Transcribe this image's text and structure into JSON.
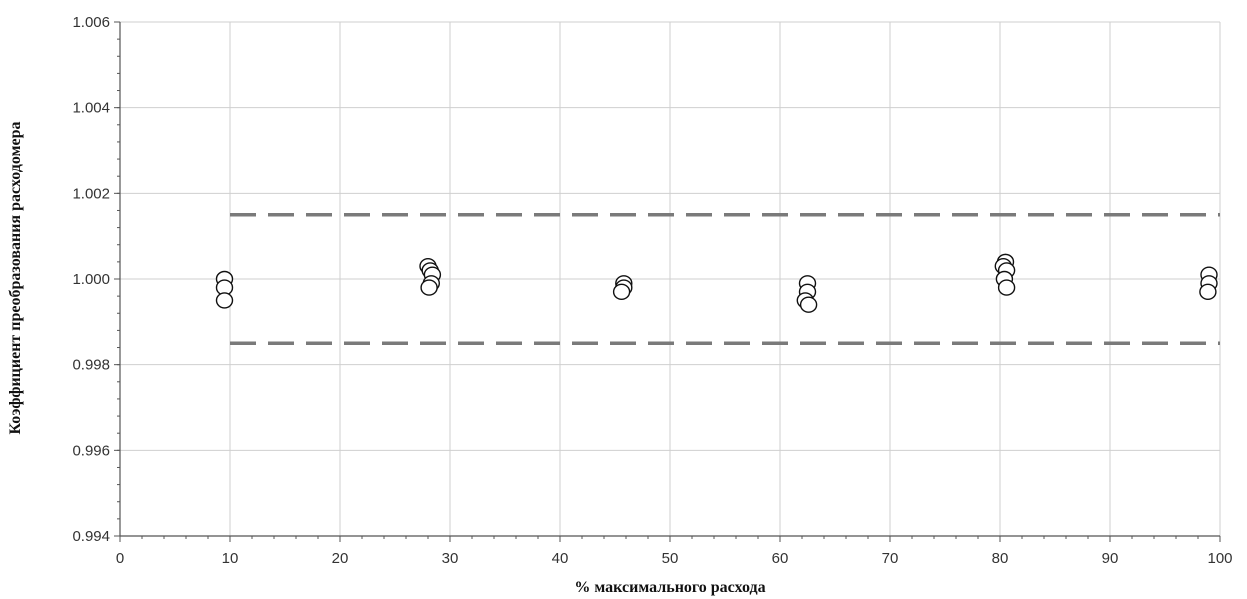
{
  "chart_data": {
    "type": "scatter",
    "title": "",
    "xlabel": "% максимального расхода",
    "ylabel": "Коэффициент  преобразования расходомера",
    "xlim": [
      0,
      100
    ],
    "ylim": [
      0.994,
      1.006
    ],
    "x_ticks": [
      "0",
      "10",
      "20",
      "30",
      "40",
      "50",
      "60",
      "70",
      "80",
      "90",
      "100"
    ],
    "y_ticks": [
      "0.994",
      "0.996",
      "0.998",
      "1.000",
      "1.002",
      "1.004",
      "1.006"
    ],
    "grid": true,
    "legend": "none",
    "limit_lines": {
      "upper": 1.0015,
      "lower": 0.9985,
      "style": "dashed",
      "color": "#7a7a7a"
    },
    "series": [
      {
        "points": [
          {
            "x": 9.5,
            "y": 1.0
          },
          {
            "x": 9.5,
            "y": 0.9998
          },
          {
            "x": 9.5,
            "y": 0.9995
          },
          {
            "x": 28.0,
            "y": 1.0003
          },
          {
            "x": 28.2,
            "y": 1.0002
          },
          {
            "x": 28.4,
            "y": 1.0001
          },
          {
            "x": 28.3,
            "y": 0.9999
          },
          {
            "x": 28.1,
            "y": 0.9998
          },
          {
            "x": 45.8,
            "y": 0.9999
          },
          {
            "x": 45.8,
            "y": 0.9998
          },
          {
            "x": 45.6,
            "y": 0.9997
          },
          {
            "x": 62.5,
            "y": 0.9999
          },
          {
            "x": 62.5,
            "y": 0.9997
          },
          {
            "x": 62.3,
            "y": 0.9995
          },
          {
            "x": 62.6,
            "y": 0.9994
          },
          {
            "x": 80.5,
            "y": 1.0004
          },
          {
            "x": 80.3,
            "y": 1.0003
          },
          {
            "x": 80.6,
            "y": 1.0002
          },
          {
            "x": 80.4,
            "y": 1.0
          },
          {
            "x": 80.6,
            "y": 0.9998
          },
          {
            "x": 99.0,
            "y": 1.0001
          },
          {
            "x": 99.0,
            "y": 0.9999
          },
          {
            "x": 98.9,
            "y": 0.9997
          }
        ]
      }
    ]
  }
}
